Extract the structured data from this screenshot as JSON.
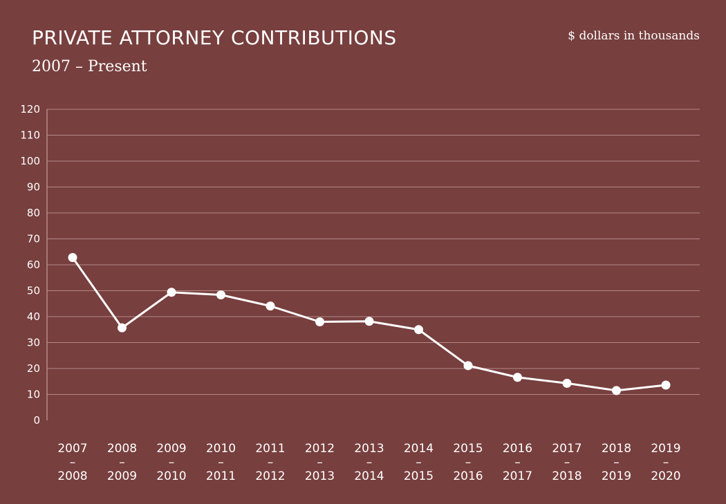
{
  "chart_data": {
    "type": "line",
    "title": "PRIVATE ATTORNEY CONTRIBUTIONS",
    "subtitle": "2007 – Present",
    "units_note": "$ dollars in thousands",
    "categories": [
      [
        "2007",
        "–",
        "2008"
      ],
      [
        "2008",
        "–",
        "2009"
      ],
      [
        "2009",
        "–",
        "2010"
      ],
      [
        "2010",
        "–",
        "2011"
      ],
      [
        "2011",
        "–",
        "2012"
      ],
      [
        "2012",
        "–",
        "2013"
      ],
      [
        "2013",
        "–",
        "2014"
      ],
      [
        "2014",
        "–",
        "2015"
      ],
      [
        "2015",
        "–",
        "2016"
      ],
      [
        "2016",
        "–",
        "2017"
      ],
      [
        "2017",
        "–",
        "2018"
      ],
      [
        "2018",
        "–",
        "2019"
      ],
      [
        "2019",
        "–",
        "2020"
      ]
    ],
    "values": [
      62.8,
      35.7,
      49.4,
      48.4,
      44.1,
      38.0,
      38.2,
      35.0,
      21.1,
      16.6,
      14.3,
      11.5,
      13.6
    ],
    "ylim": [
      0,
      120
    ],
    "yticks": [
      0,
      10,
      20,
      30,
      40,
      50,
      60,
      70,
      80,
      90,
      100,
      110,
      120
    ],
    "grid": true,
    "colors": {
      "background": "#773f3e",
      "line": "#ffffff",
      "grid": "#b58a89",
      "text": "#ffffff"
    }
  }
}
